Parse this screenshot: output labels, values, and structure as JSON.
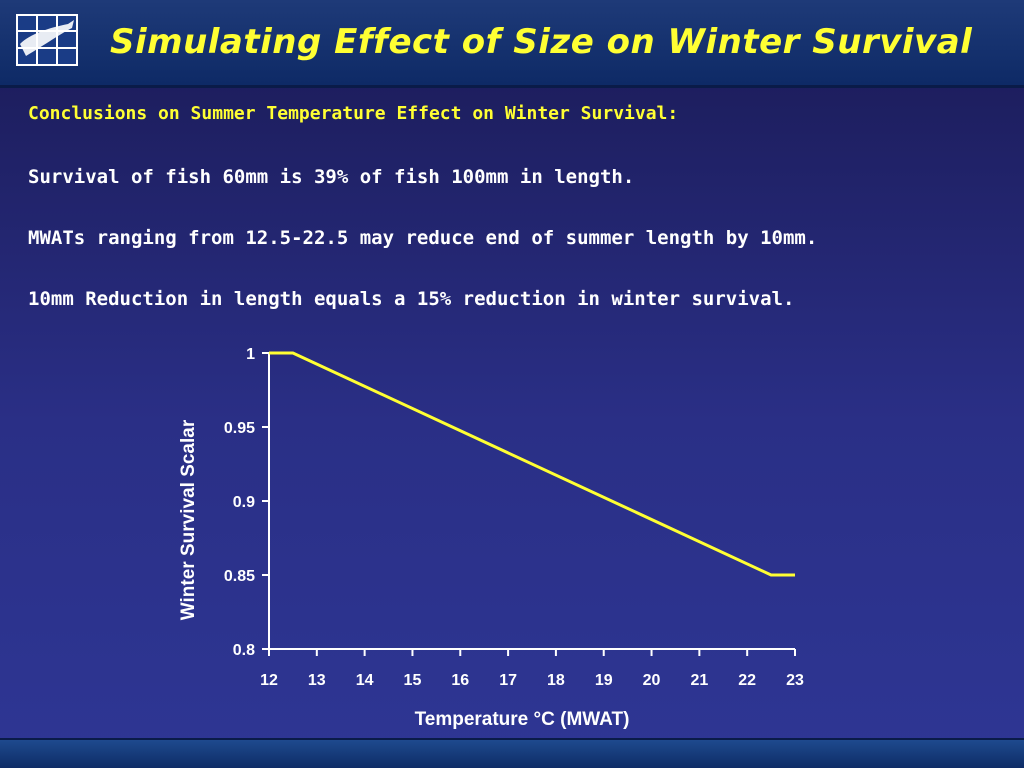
{
  "slide": {
    "title": "Simulating Effect of Size on Winter Survival",
    "logo_icon": "fish-grid-logo",
    "subheading": "Conclusions on Summer Temperature Effect on Winter Survival:",
    "bullets": [
      "Survival of fish 60mm is 39% of fish 100mm in length.",
      "MWATs ranging from 12.5-22.5 may reduce end of summer length by 10mm.",
      "10mm Reduction in length equals a 15% reduction in winter survival."
    ]
  },
  "colors": {
    "title": "#ffff33",
    "line": "#ffff33",
    "text": "#ffffff"
  },
  "chart_data": {
    "type": "line",
    "xlabel": "Temperature °C (MWAT)",
    "ylabel": "Winter Survival Scalar",
    "xlim": [
      12,
      23
    ],
    "ylim": [
      0.8,
      1
    ],
    "xticks": [
      12,
      13,
      14,
      15,
      16,
      17,
      18,
      19,
      20,
      21,
      22,
      23
    ],
    "yticks": [
      {
        "value": 0.8,
        "label": "0.8"
      },
      {
        "value": 0.85,
        "label": "0.85"
      },
      {
        "value": 0.9,
        "label": "0.9"
      },
      {
        "value": 0.95,
        "label": "0.95"
      },
      {
        "value": 1,
        "label": "1"
      }
    ],
    "grid": false,
    "series": [
      {
        "x": [
          12,
          12.5,
          22.5,
          23
        ],
        "y": [
          1,
          1,
          0.85,
          0.85
        ]
      }
    ]
  }
}
